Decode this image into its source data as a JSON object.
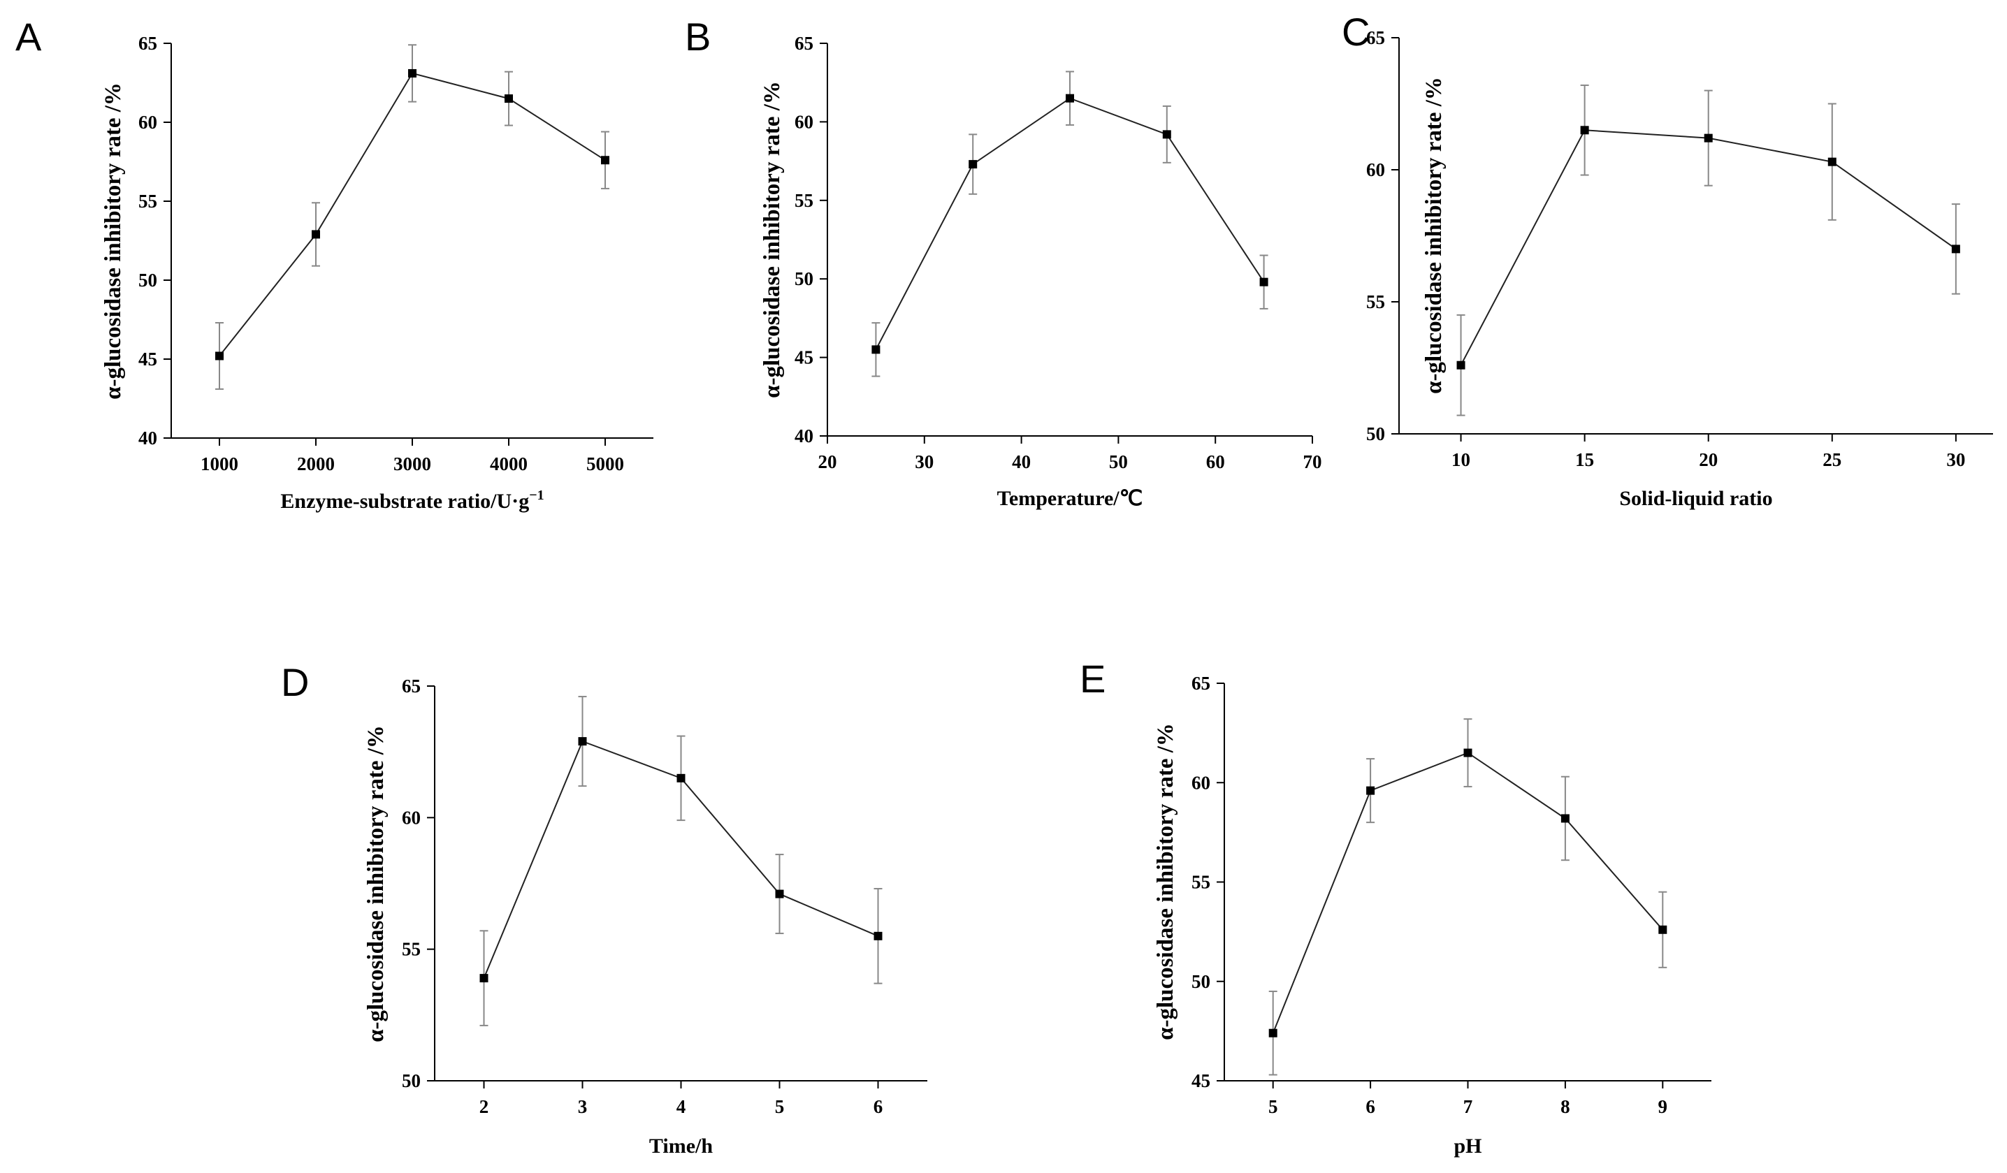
{
  "figure": {
    "panels": [
      {
        "letter": "A"
      },
      {
        "letter": "B"
      },
      {
        "letter": "C"
      },
      {
        "letter": "D"
      },
      {
        "letter": "E"
      }
    ]
  },
  "chart_data": [
    {
      "type": "line",
      "panel": "A",
      "xlabel": "Enzyme-substrate ratio/U·g",
      "xlabel_sup": "−1",
      "ylabel": "α-glucosidase inhibitory rate /%",
      "x": [
        1000,
        2000,
        3000,
        4000,
        5000
      ],
      "y": [
        45.2,
        52.9,
        63.1,
        61.5,
        57.6
      ],
      "error": [
        2.1,
        2.0,
        1.8,
        1.7,
        1.8
      ],
      "xlim": [
        500,
        5500
      ],
      "ylim": [
        40,
        65
      ],
      "xticks": [
        1000,
        2000,
        3000,
        4000,
        5000
      ],
      "xtick_labels": [
        "1000",
        "2000",
        "3000",
        "4000",
        "5000"
      ],
      "yticks": [
        40,
        45,
        50,
        55,
        60,
        65
      ],
      "ytick_labels": [
        "40",
        "45",
        "50",
        "55",
        "60",
        "65"
      ]
    },
    {
      "type": "line",
      "panel": "B",
      "xlabel": "Temperature/℃",
      "ylabel": "α-glucosidase inhibitory rate /%",
      "x": [
        25,
        35,
        45,
        55,
        65
      ],
      "y": [
        45.5,
        57.3,
        61.5,
        59.2,
        49.8
      ],
      "error": [
        1.7,
        1.9,
        1.7,
        1.8,
        1.7
      ],
      "xlim": [
        20,
        70
      ],
      "ylim": [
        40,
        65
      ],
      "xticks": [
        20,
        30,
        40,
        50,
        60,
        70
      ],
      "xtick_labels": [
        "20",
        "30",
        "40",
        "50",
        "60",
        "70"
      ],
      "yticks": [
        40,
        45,
        50,
        55,
        60,
        65
      ],
      "ytick_labels": [
        "40",
        "45",
        "50",
        "55",
        "60",
        "65"
      ]
    },
    {
      "type": "line",
      "panel": "C",
      "xlabel": "Solid-liquid ratio",
      "ylabel": "α-glucosidase inhibitory rate /%",
      "x": [
        10,
        15,
        20,
        25,
        30
      ],
      "y": [
        52.6,
        61.5,
        61.2,
        60.3,
        57.0
      ],
      "error": [
        1.9,
        1.7,
        1.8,
        2.2,
        1.7
      ],
      "xlim": [
        7.5,
        31.5
      ],
      "ylim": [
        50,
        65
      ],
      "xticks": [
        10,
        15,
        20,
        25,
        30
      ],
      "xtick_labels": [
        "10",
        "15",
        "20",
        "25",
        "30"
      ],
      "yticks": [
        50,
        55,
        60,
        65
      ],
      "ytick_labels": [
        "50",
        "55",
        "60",
        "65"
      ]
    },
    {
      "type": "line",
      "panel": "D",
      "xlabel": "Time/h",
      "ylabel": "α-glucosidase inhibitory rate /%",
      "x": [
        2,
        3,
        4,
        5,
        6
      ],
      "y": [
        53.9,
        62.9,
        61.5,
        57.1,
        55.5
      ],
      "error": [
        1.8,
        1.7,
        1.6,
        1.5,
        1.8
      ],
      "xlim": [
        1.5,
        6.5
      ],
      "ylim": [
        50,
        65
      ],
      "xticks": [
        2,
        3,
        4,
        5,
        6
      ],
      "xtick_labels": [
        "2",
        "3",
        "4",
        "5",
        "6"
      ],
      "yticks": [
        50,
        55,
        60,
        65
      ],
      "ytick_labels": [
        "50",
        "55",
        "60",
        "65"
      ]
    },
    {
      "type": "line",
      "panel": "E",
      "xlabel": "pH",
      "ylabel": "α-glucosidase inhibitory rate /%",
      "x": [
        5,
        6,
        7,
        8,
        9
      ],
      "y": [
        47.4,
        59.6,
        61.5,
        58.2,
        52.6
      ],
      "error": [
        2.1,
        1.6,
        1.7,
        2.1,
        1.9
      ],
      "xlim": [
        4.5,
        9.5
      ],
      "ylim": [
        45,
        65
      ],
      "xticks": [
        5,
        6,
        7,
        8,
        9
      ],
      "xtick_labels": [
        "5",
        "6",
        "7",
        "8",
        "9"
      ],
      "yticks": [
        45,
        50,
        55,
        60,
        65
      ],
      "ytick_labels": [
        "45",
        "50",
        "55",
        "60",
        "65"
      ]
    }
  ]
}
